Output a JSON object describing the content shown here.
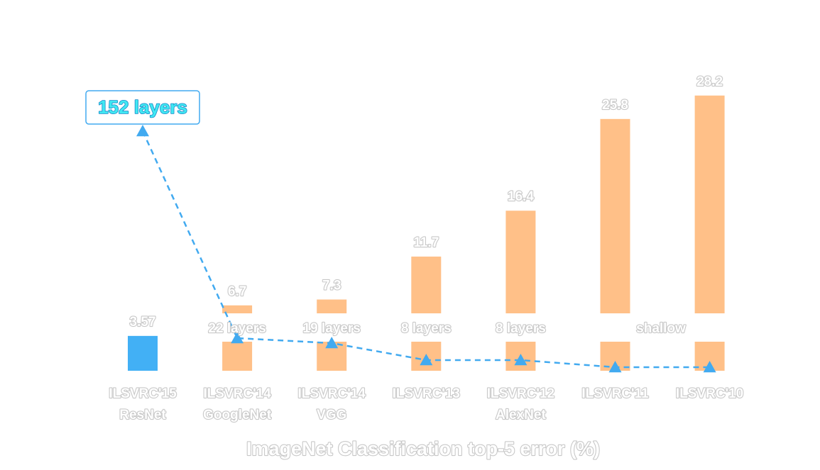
{
  "chart_data": {
    "type": "bar",
    "title": "ImageNet Classification top-5 error (%)",
    "categories": [
      {
        "line1": "ILSVRC'15",
        "line2": "ResNet"
      },
      {
        "line1": "ILSVRC'14",
        "line2": "GoogleNet"
      },
      {
        "line1": "ILSVRC'14",
        "line2": "VGG"
      },
      {
        "line1": "ILSVRC'13",
        "line2": ""
      },
      {
        "line1": "ILSVRC'12",
        "line2": "AlexNet"
      },
      {
        "line1": "ILSVRC'11",
        "line2": ""
      },
      {
        "line1": "ILSVRC'10",
        "line2": ""
      }
    ],
    "values": [
      3.57,
      6.7,
      7.3,
      11.7,
      16.4,
      25.8,
      28.2
    ],
    "value_labels": [
      "3.57",
      "6.7",
      "7.3",
      "11.7",
      "16.4",
      "25.8",
      "28.2"
    ],
    "depth_labels": [
      "152 layers",
      "22 layers",
      "19 layers",
      "8 layers",
      "8 layers",
      "",
      "shallow"
    ],
    "ylim": [
      0,
      30
    ],
    "grid": false,
    "colors": {
      "highlight_bar": "#42b0f5",
      "bar": "#ffc088",
      "depth_line": "#42aaf0",
      "callout_border": "#42aaf0"
    }
  }
}
